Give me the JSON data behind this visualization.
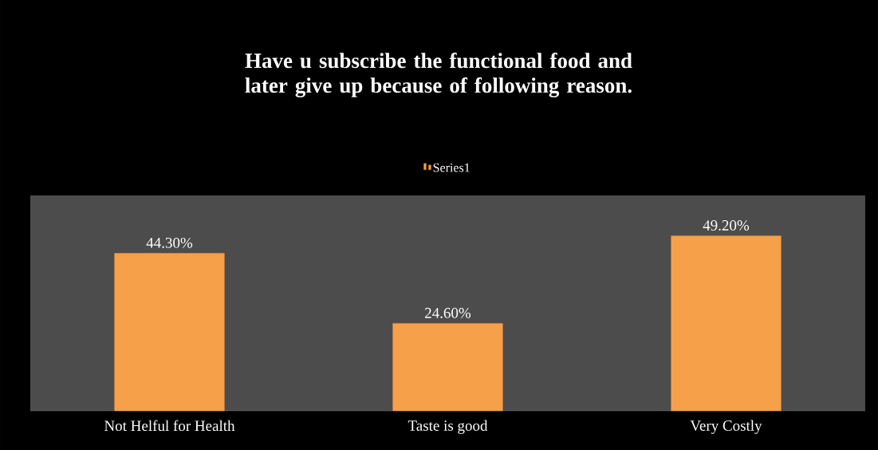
{
  "chart_data": {
    "type": "bar",
    "title": "Have u subscribe the functional food and later give up because of following reason.",
    "categories": [
      "Not Helful for Health",
      "Taste is good",
      "Very Costly"
    ],
    "series": [
      {
        "name": "Series1",
        "color": "#f7a04a",
        "values": [
          44.3,
          24.6,
          49.2
        ],
        "value_labels": [
          "44.30%",
          "24.60%",
          "49.20%"
        ]
      }
    ],
    "legend": "top"
  }
}
